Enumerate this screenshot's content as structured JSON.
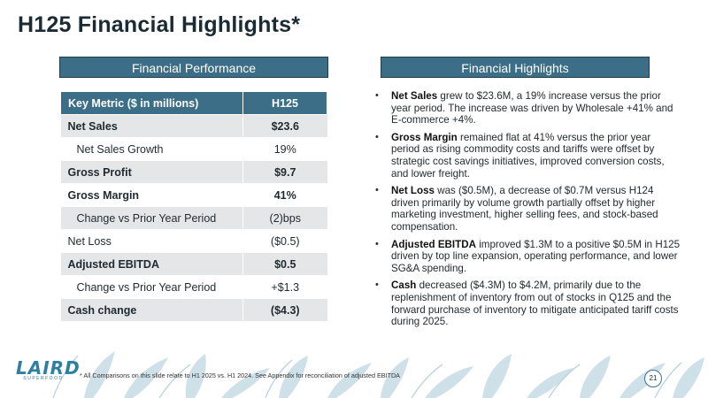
{
  "slide": {
    "title": "H125 Financial Highlights*",
    "page_number": "21"
  },
  "performance": {
    "header": "Financial Performance",
    "table": {
      "col_metric": "Key Metric ($ in millions)",
      "col_value": "H125",
      "rows": [
        {
          "label": "Net Sales",
          "value": "$23.6"
        },
        {
          "label": "Net Sales Growth",
          "value": "19%"
        },
        {
          "label": "Gross Profit",
          "value": "$9.7"
        },
        {
          "label": "Gross Margin",
          "value": "41%"
        },
        {
          "label": "Change vs Prior Year Period",
          "value": "(2)bps"
        },
        {
          "label": "Net Loss",
          "value": "($0.5)"
        },
        {
          "label": "Adjusted EBITDA",
          "value": "$0.5"
        },
        {
          "label": "Change vs Prior Year Period",
          "value": "+$1.3"
        },
        {
          "label": "Cash change",
          "value": "($4.3)"
        }
      ]
    }
  },
  "highlights": {
    "header": "Financial Highlights",
    "items": [
      {
        "lead": "Net Sales",
        "text": " grew to $23.6M, a 19% increase versus the prior year period. The increase was driven by Wholesale +41% and E-commerce +4%."
      },
      {
        "lead": "Gross Margin",
        "text": " remained flat at 41% versus the prior year period as rising commodity costs and tariffs were offset by strategic cost savings initiatives, improved conversion costs, and lower freight."
      },
      {
        "lead": "Net Loss",
        "text": " was ($0.5M), a decrease of $0.7M versus H124 driven primarily by volume growth partially offset by higher marketing investment, higher selling fees, and stock-based compensation."
      },
      {
        "lead": "Adjusted EBITDA",
        "text": " improved $1.3M to a positive $0.5M in H125 driven by top line expansion, operating performance, and lower SG&A spending."
      },
      {
        "lead": "Cash",
        "text": " decreased ($4.3M) to $4.2M, primarily due to the replenishment of inventory from out of stocks in Q125 and the forward purchase of inventory to mitigate anticipated tariff costs during 2025."
      }
    ]
  },
  "footer": {
    "logo_word": "LAIRD",
    "logo_sub": "SUPERFOOD",
    "footnote": "* All Comparisons on this slide relate to H1 2025 vs. H1 2024. See Appendix for reconciliation of adjusted EBITDA"
  },
  "colors": {
    "accent": "#3c6f87",
    "leaf": "#c9dde6"
  }
}
